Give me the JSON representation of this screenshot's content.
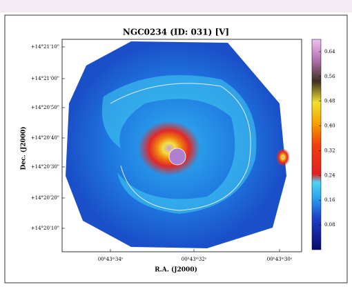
{
  "chart_data": {
    "type": "image",
    "title": "NGC0234 (ID: 031) [V]",
    "xlabel": "R.A. (J2000)",
    "ylabel": "Dec. (J2000)",
    "xtick_labels": [
      "00ʰ43ᵐ34ˢ",
      "00ʰ43ᵐ32ˢ",
      "00ʰ43ᵐ30ˢ"
    ],
    "ytick_labels": [
      "+14°21'10\"",
      "+14°21'00\"",
      "+14°20'50\"",
      "+14°20'40\"",
      "+14°20'30\"",
      "+14°20'20\"",
      "+14°20'10\""
    ],
    "clim": [
      0,
      0.68
    ],
    "cticks": [
      0.08,
      0.16,
      0.24,
      0.32,
      {
        "value": 0.4,
        "label": "0.40"
      },
      0.48,
      0.56,
      0.64
    ]
  }
}
